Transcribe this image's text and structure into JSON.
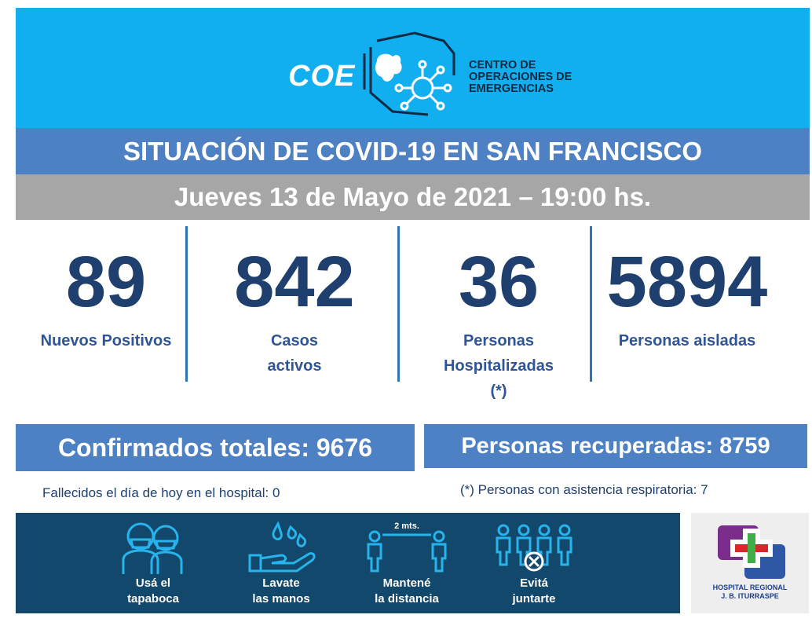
{
  "header": {
    "logo_word": "COE",
    "logo_lines": [
      "CENTRO DE",
      "OPERACIONES DE",
      "EMERGENCIAS"
    ]
  },
  "title": "SITUACIÓN DE COVID-19 EN SAN FRANCISCO",
  "date": "Jueves 13 de Mayo de 2021 – 19:00 hs.",
  "stats": [
    {
      "value": "89",
      "label_lines": [
        "Nuevos Positivos"
      ]
    },
    {
      "value": "842",
      "label_lines": [
        "Casos",
        "activos"
      ]
    },
    {
      "value": "36",
      "label_lines": [
        "Personas",
        "Hospitalizadas",
        "(*)"
      ]
    },
    {
      "value": "5894",
      "label_lines": [
        "Personas aisladas"
      ]
    }
  ],
  "totals": {
    "confirmados": "Confirmados totales: 9676",
    "recuperadas": "Personas recuperadas: 8759"
  },
  "notes": {
    "fallecidos": "Fallecidos el día de hoy en el hospital: 0",
    "asistencia": "(*) Personas con asistencia respiratoria: 7"
  },
  "campaign": [
    {
      "icon": "mask-people-icon",
      "lines": [
        "Usá el",
        "tapaboca"
      ]
    },
    {
      "icon": "hand-wash-icon",
      "lines": [
        "Lavate",
        "las manos"
      ]
    },
    {
      "icon": "distance-icon",
      "lines": [
        "Mantené",
        "la distancia"
      ],
      "distance_label": "2 mts."
    },
    {
      "icon": "no-gathering-icon",
      "lines": [
        "Evitá",
        "juntarte"
      ]
    }
  ],
  "hospital": {
    "name_lines": [
      "HOSPITAL REGIONAL",
      "J. B. ITURRASPE"
    ]
  },
  "colors": {
    "banner": "#11aef0",
    "title_bar": "#4d81c3",
    "date_bar": "#a6a6a6",
    "number": "#1f3f6e",
    "label": "#2f5597",
    "campaign_bg": "#11486b"
  }
}
